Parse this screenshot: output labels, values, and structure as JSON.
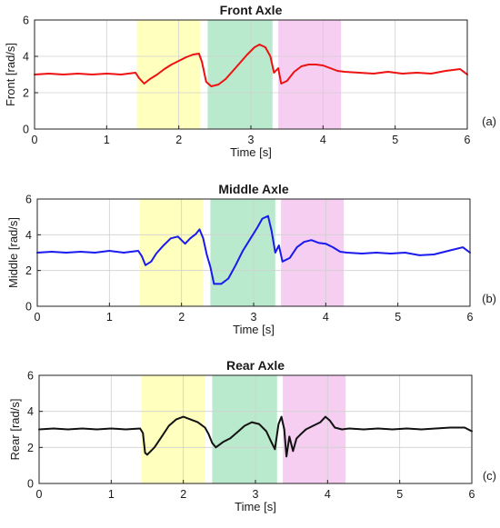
{
  "figure": {
    "background": "#ffffff",
    "grid": true,
    "shade_color_names": [
      "yellow",
      "green",
      "pink"
    ]
  },
  "chart_data": [
    {
      "type": "line",
      "title": "Front Axle",
      "xlabel": "Time [s]",
      "ylabel": "Front [rad/s]",
      "tag": "(a)",
      "xlim": [
        0,
        6
      ],
      "ylim": [
        0,
        6
      ],
      "xticks": [
        "0",
        "1",
        "2",
        "3",
        "4",
        "5",
        "6"
      ],
      "yticks": [
        "0",
        "2",
        "4",
        "6"
      ],
      "shaded_regions": [
        {
          "x": [
            1.42,
            2.3
          ],
          "color": "#ffffb3"
        },
        {
          "x": [
            2.4,
            3.3
          ],
          "color": "#aee6c4"
        },
        {
          "x": [
            3.38,
            4.25
          ],
          "color": "#f3c6ee"
        }
      ],
      "series": [
        {
          "color": "#ee1111",
          "x": [
            0,
            0.2,
            0.4,
            0.6,
            0.8,
            1.0,
            1.2,
            1.4,
            1.45,
            1.52,
            1.6,
            1.7,
            1.8,
            1.9,
            2.0,
            2.1,
            2.2,
            2.28,
            2.32,
            2.38,
            2.45,
            2.55,
            2.65,
            2.75,
            2.85,
            2.95,
            3.05,
            3.12,
            3.2,
            3.27,
            3.32,
            3.38,
            3.42,
            3.5,
            3.6,
            3.7,
            3.8,
            3.9,
            4.0,
            4.1,
            4.2,
            4.3,
            4.5,
            4.7,
            4.9,
            5.1,
            5.3,
            5.5,
            5.7,
            5.9,
            6.0
          ],
          "y": [
            3.0,
            3.05,
            3.0,
            3.05,
            3.0,
            3.05,
            3.0,
            3.1,
            2.8,
            2.5,
            2.75,
            3.0,
            3.3,
            3.55,
            3.75,
            3.95,
            4.1,
            4.15,
            3.7,
            2.6,
            2.35,
            2.45,
            2.75,
            3.2,
            3.65,
            4.1,
            4.5,
            4.65,
            4.5,
            4.0,
            3.1,
            3.35,
            2.5,
            2.65,
            3.15,
            3.45,
            3.55,
            3.55,
            3.5,
            3.35,
            3.2,
            3.15,
            3.1,
            3.05,
            3.15,
            3.05,
            3.1,
            3.05,
            3.2,
            3.3,
            3.0
          ]
        }
      ]
    },
    {
      "type": "line",
      "title": "Middle Axle",
      "xlabel": "Time [s]",
      "ylabel": "Middle [rad/s]",
      "tag": "(b)",
      "xlim": [
        0,
        6
      ],
      "ylim": [
        0,
        6
      ],
      "xticks": [
        "0",
        "1",
        "2",
        "3",
        "4",
        "5",
        "6"
      ],
      "yticks": [
        "0",
        "2",
        "4",
        "6"
      ],
      "shaded_regions": [
        {
          "x": [
            1.42,
            2.3
          ],
          "color": "#ffffb3"
        },
        {
          "x": [
            2.4,
            3.3
          ],
          "color": "#aee6c4"
        },
        {
          "x": [
            3.38,
            4.25
          ],
          "color": "#f3c6ee"
        }
      ],
      "series": [
        {
          "color": "#1a1aee",
          "x": [
            0,
            0.2,
            0.4,
            0.6,
            0.8,
            1.0,
            1.2,
            1.4,
            1.45,
            1.5,
            1.58,
            1.65,
            1.75,
            1.85,
            1.95,
            2.05,
            2.12,
            2.2,
            2.25,
            2.3,
            2.35,
            2.4,
            2.45,
            2.55,
            2.65,
            2.75,
            2.85,
            2.95,
            3.05,
            3.12,
            3.2,
            3.25,
            3.3,
            3.35,
            3.4,
            3.5,
            3.6,
            3.7,
            3.8,
            3.9,
            4.0,
            4.1,
            4.2,
            4.3,
            4.5,
            4.7,
            4.9,
            5.1,
            5.3,
            5.5,
            5.7,
            5.9,
            6.0
          ],
          "y": [
            3.0,
            3.05,
            3.0,
            3.05,
            3.0,
            3.1,
            3.0,
            3.1,
            2.8,
            2.3,
            2.5,
            2.95,
            3.4,
            3.8,
            3.9,
            3.5,
            3.8,
            4.05,
            4.3,
            3.8,
            2.9,
            2.2,
            1.25,
            1.25,
            1.55,
            2.3,
            3.1,
            3.75,
            4.4,
            4.9,
            5.05,
            4.2,
            3.0,
            3.4,
            2.5,
            2.7,
            3.3,
            3.6,
            3.7,
            3.55,
            3.5,
            3.3,
            3.05,
            3.0,
            2.95,
            3.0,
            2.95,
            3.0,
            2.85,
            2.9,
            3.1,
            3.3,
            3.0
          ]
        }
      ]
    },
    {
      "type": "line",
      "title": "Rear Axle",
      "xlabel": "Time [s]",
      "ylabel": "Rear [rad/s]",
      "tag": "(c)",
      "xlim": [
        0,
        6
      ],
      "ylim": [
        0,
        6
      ],
      "xticks": [
        "0",
        "1",
        "2",
        "3",
        "4",
        "5",
        "6"
      ],
      "yticks": [
        "0",
        "2",
        "4",
        "6"
      ],
      "shaded_regions": [
        {
          "x": [
            1.42,
            2.3
          ],
          "color": "#ffffb3"
        },
        {
          "x": [
            2.4,
            3.3
          ],
          "color": "#aee6c4"
        },
        {
          "x": [
            3.38,
            4.25
          ],
          "color": "#f3c6ee"
        }
      ],
      "series": [
        {
          "color": "#111111",
          "x": [
            0,
            0.2,
            0.4,
            0.6,
            0.8,
            1.0,
            1.2,
            1.4,
            1.44,
            1.47,
            1.5,
            1.6,
            1.7,
            1.8,
            1.9,
            2.0,
            2.1,
            2.2,
            2.3,
            2.35,
            2.4,
            2.45,
            2.55,
            2.65,
            2.75,
            2.85,
            2.95,
            3.05,
            3.15,
            3.22,
            3.27,
            3.32,
            3.36,
            3.4,
            3.43,
            3.47,
            3.52,
            3.57,
            3.62,
            3.7,
            3.8,
            3.9,
            3.97,
            4.03,
            4.1,
            4.2,
            4.3,
            4.5,
            4.7,
            4.9,
            5.1,
            5.3,
            5.5,
            5.7,
            5.9,
            6.0
          ],
          "y": [
            3.0,
            3.05,
            3.0,
            3.05,
            3.0,
            3.05,
            3.0,
            3.05,
            2.8,
            1.7,
            1.6,
            2.0,
            2.6,
            3.2,
            3.55,
            3.7,
            3.55,
            3.4,
            3.1,
            2.75,
            2.25,
            2.0,
            2.3,
            2.5,
            2.85,
            3.2,
            3.4,
            3.3,
            2.9,
            2.3,
            1.9,
            3.3,
            3.7,
            3.0,
            1.5,
            2.6,
            1.8,
            2.5,
            2.7,
            3.0,
            3.2,
            3.4,
            3.7,
            3.5,
            3.1,
            3.0,
            3.05,
            3.0,
            3.05,
            3.0,
            3.05,
            3.0,
            3.05,
            3.1,
            3.1,
            2.9
          ]
        }
      ]
    }
  ]
}
